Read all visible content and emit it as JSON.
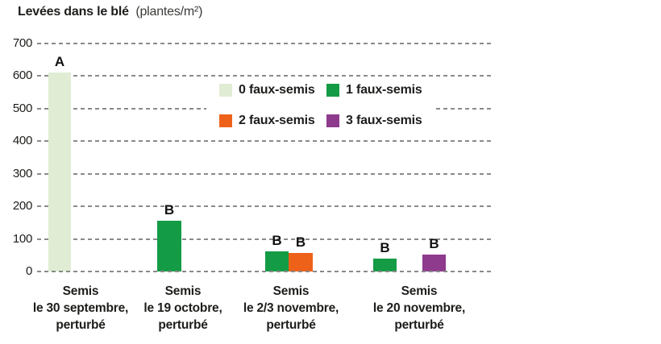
{
  "title": {
    "main": "Levées dans le blé",
    "unit": "(plantes/m²)"
  },
  "chart_data": {
    "type": "bar",
    "title": "Levées dans le blé (plantes/m²)",
    "ylabel": "plantes/m²",
    "ylim": [
      0,
      700
    ],
    "yticks": [
      0,
      100,
      200,
      300,
      400,
      500,
      600,
      700
    ],
    "grid": "horizontal dashed",
    "legend_position": "upper center, two rows on white background",
    "legend": [
      {
        "label": "0 faux-semis",
        "color": "#e0edd4"
      },
      {
        "label": "1 faux-semis",
        "color": "#149b45"
      },
      {
        "label": "2 faux-semis",
        "color": "#ee6119"
      },
      {
        "label": "3 faux-semis",
        "color": "#8e3a8d"
      }
    ],
    "groups": [
      {
        "category": "Semis le 30 septembre, perturbé",
        "category_lines": [
          "Semis",
          "le 30 septembre,",
          "perturbé"
        ],
        "bars": [
          {
            "series": "0 faux-semis",
            "value": 610,
            "significance": "A"
          }
        ]
      },
      {
        "category": "Semis le 19 octobre, perturbé",
        "category_lines": [
          "Semis",
          "le 19 octobre,",
          "perturbé"
        ],
        "bars": [
          {
            "series": "1 faux-semis",
            "value": 155,
            "significance": "B"
          }
        ]
      },
      {
        "category": "Semis le 2/3 novembre, perturbé",
        "category_lines": [
          "Semis",
          "le 2/3 novembre,",
          "perturbé"
        ],
        "bars": [
          {
            "series": "1 faux-semis",
            "value": 62,
            "significance": "B"
          },
          {
            "series": "2 faux-semis",
            "value": 57,
            "significance": "B"
          }
        ]
      },
      {
        "category": "Semis le 20 novembre, perturbé",
        "category_lines": [
          "Semis",
          "le 20 novembre,",
          "perturbé"
        ],
        "bars": [
          {
            "series": "1 faux-semis",
            "value": 40,
            "significance": "B"
          },
          {
            "series": "3 faux-semis",
            "value": 53,
            "significance": "B"
          }
        ]
      }
    ]
  }
}
